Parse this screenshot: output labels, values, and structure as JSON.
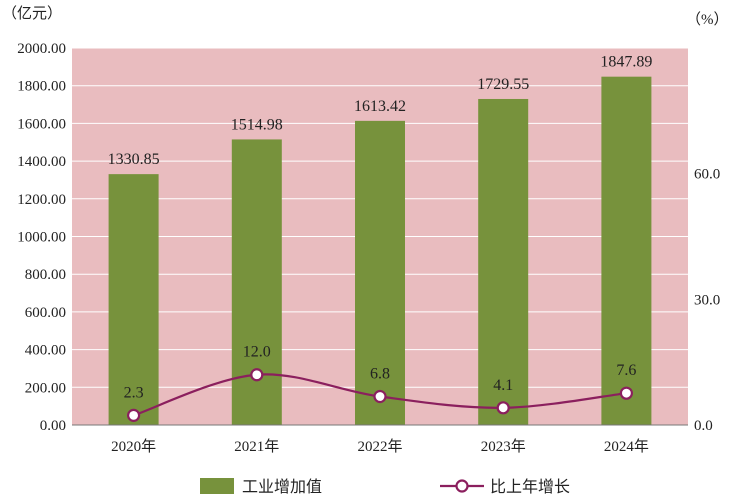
{
  "chart_data": {
    "type": "bar",
    "categories": [
      "2020年",
      "2021年",
      "2022年",
      "2023年",
      "2024年"
    ],
    "series": [
      {
        "name": "工业增加值",
        "type": "bar",
        "axis": "left",
        "values": [
          1330.85,
          1514.98,
          1613.42,
          1729.55,
          1847.89
        ],
        "labels": [
          "1330.85",
          "1514.98",
          "1613.42",
          "1729.55",
          "1847.89"
        ],
        "color": "#77923c"
      },
      {
        "name": "比上年增长",
        "type": "line",
        "axis": "right",
        "values": [
          2.3,
          12.0,
          6.8,
          4.1,
          7.6
        ],
        "labels": [
          "2.3",
          "12.0",
          "6.8",
          "4.1",
          "7.6"
        ],
        "color": "#8b1f5e"
      }
    ],
    "y_left": {
      "unit": "（亿元）",
      "ylim": [
        0,
        2000
      ],
      "ticks": [
        "0.00",
        "200.00",
        "400.00",
        "600.00",
        "800.00",
        "1000.00",
        "1200.00",
        "1400.00",
        "1600.00",
        "1800.00",
        "2000.00"
      ]
    },
    "y_right": {
      "unit": "（%）",
      "ylim": [
        0,
        90
      ],
      "ticks": [
        "0.0",
        "30.0",
        "60.0"
      ],
      "tick_values": [
        0,
        30,
        60
      ]
    },
    "legend_position": "bottom",
    "plot_background": "#e9bcbf",
    "grid": true
  }
}
